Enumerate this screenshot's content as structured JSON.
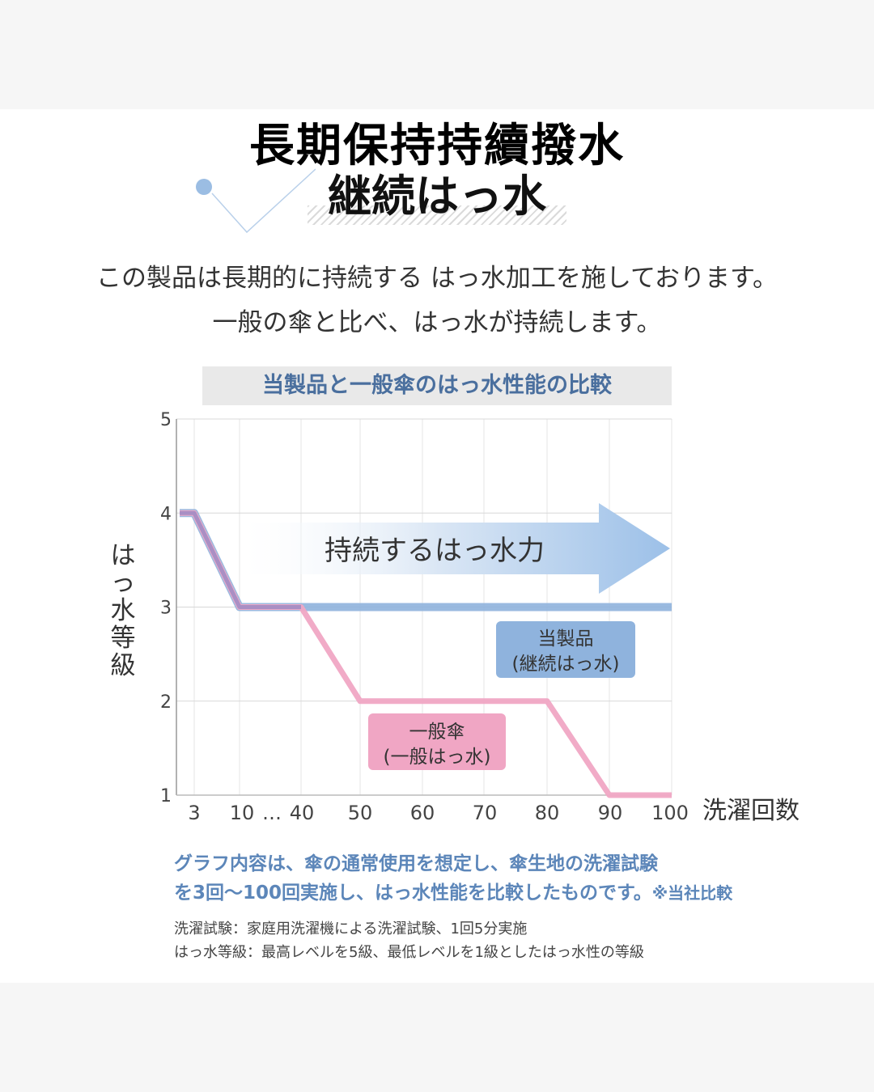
{
  "heading": {
    "title_zh": "長期保持持續撥水",
    "title_ja": "継続はっ水"
  },
  "intro": {
    "line1": "この製品は長期的に持続する はっ水加工を施しております。",
    "line2": "一般の傘と比べ、はっ水が持続します。"
  },
  "chart_data": {
    "type": "line",
    "title": "当製品と一般傘のはっ水性能の比較",
    "xlabel": "洗濯回数",
    "ylabel": "はっ水等級",
    "x_ticks": [
      "3",
      "10",
      "…",
      "40",
      "50",
      "60",
      "70",
      "80",
      "90",
      "100"
    ],
    "y_ticks": [
      "1",
      "2",
      "3",
      "4",
      "5"
    ],
    "ylim": [
      1,
      5
    ],
    "grid": true,
    "arrow_label": "持続するはっ水力",
    "series": [
      {
        "name": "当製品(継続はっ水)",
        "label_line1": "当製品",
        "label_line2": "(継続はっ水)",
        "color": "#8fb3dd",
        "points": [
          [
            0,
            4
          ],
          [
            3,
            4
          ],
          [
            10,
            3
          ],
          [
            40,
            3
          ],
          [
            100,
            3
          ]
        ]
      },
      {
        "name": "一般傘(一般はっ水)",
        "label_line1": "一般傘",
        "label_line2": "(一般はっ水)",
        "color": "#f0a6c4",
        "points": [
          [
            0,
            4
          ],
          [
            3,
            4
          ],
          [
            10,
            3
          ],
          [
            40,
            3
          ],
          [
            50,
            2
          ],
          [
            80,
            2
          ],
          [
            90,
            1
          ],
          [
            100,
            1
          ]
        ]
      }
    ]
  },
  "notes": {
    "blue1": "グラフ内容は、傘の通常使用を想定し、傘生地の洗濯試験",
    "blue2": "を3回〜100回実施し、はっ水性能を比較したものです。",
    "blue2_small": "※当社比較",
    "def1": "洗濯試験：家庭用洗濯機による洗濯試験、1回5分実施",
    "def2": "はっ水等級：最高レベルを5級、最低レベルを1級としたはっ水性の等級"
  }
}
